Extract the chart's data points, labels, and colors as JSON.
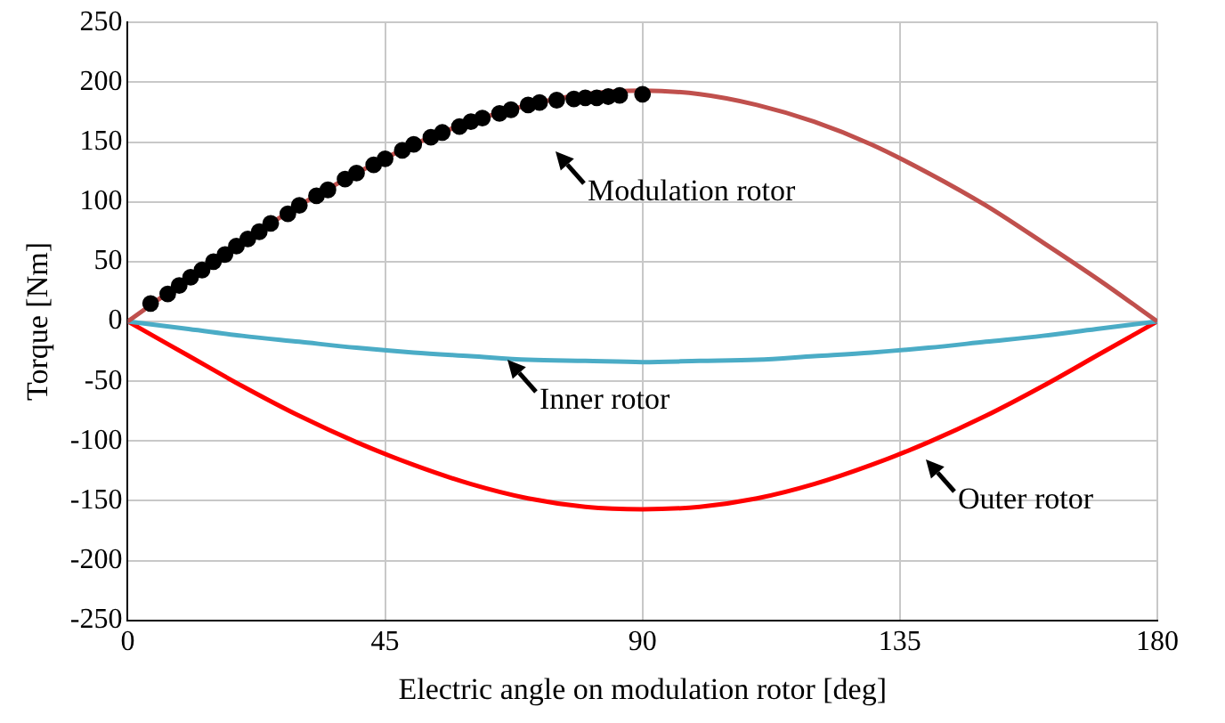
{
  "chart_data": {
    "type": "line",
    "xlabel": "Electric angle on modulation rotor [deg]",
    "ylabel": "Torque [Nm]",
    "xlim": [
      0,
      180
    ],
    "xticks": [
      0,
      45,
      90,
      135,
      180
    ],
    "ylim": [
      -250,
      250
    ],
    "yticks": [
      -250,
      -200,
      -150,
      -100,
      -50,
      0,
      50,
      100,
      150,
      200,
      250
    ],
    "grid": true,
    "legend": false,
    "series": [
      {
        "color": "#c0504d",
        "marker": "none",
        "x": [
          0,
          10,
          20,
          30,
          40,
          50,
          60,
          70,
          80,
          90,
          100,
          110,
          120,
          130,
          140,
          150,
          160,
          170,
          180
        ],
        "values": [
          0,
          34,
          66,
          97,
          124,
          148,
          167,
          181,
          190,
          193,
          190,
          181,
          167,
          148,
          124,
          97,
          66,
          34,
          0
        ]
      },
      {
        "color": "#4bacc6",
        "marker": "none",
        "x": [
          0,
          10,
          20,
          30,
          40,
          50,
          60,
          70,
          80,
          90,
          100,
          110,
          120,
          130,
          140,
          150,
          160,
          170,
          180
        ],
        "values": [
          0,
          -6,
          -12,
          -17,
          -22,
          -26,
          -29,
          -32,
          -33,
          -34,
          -33,
          -32,
          -29,
          -26,
          -22,
          -17,
          -12,
          -6,
          0
        ]
      },
      {
        "color": "#ff0000",
        "marker": "none",
        "x": [
          0,
          10,
          20,
          30,
          40,
          50,
          60,
          70,
          80,
          90,
          100,
          110,
          120,
          130,
          140,
          150,
          160,
          170,
          180
        ],
        "values": [
          0,
          -27,
          -54,
          -79,
          -101,
          -120,
          -136,
          -148,
          -155,
          -157,
          -155,
          -148,
          -136,
          -120,
          -101,
          -79,
          -54,
          -27,
          0
        ]
      },
      {
        "type": "scatter",
        "color": "#000000",
        "marker": "circle",
        "x": [
          4,
          7,
          9,
          11,
          13,
          15,
          17,
          19,
          21,
          23,
          25,
          28,
          30,
          33,
          35,
          38,
          40,
          43,
          45,
          48,
          50,
          53,
          55,
          58,
          60,
          62,
          65,
          67,
          70,
          72,
          75,
          78,
          80,
          82,
          84,
          86,
          90
        ],
        "values": [
          15,
          23,
          30,
          37,
          43,
          50,
          56,
          63,
          69,
          75,
          82,
          90,
          97,
          105,
          110,
          119,
          124,
          131,
          136,
          143,
          148,
          154,
          158,
          163,
          167,
          170,
          174,
          177,
          181,
          183,
          185,
          186,
          187,
          187,
          188,
          189,
          190
        ]
      }
    ],
    "annotations": [
      "Modulation rotor",
      "Inner rotor",
      "Outer rotor"
    ]
  }
}
